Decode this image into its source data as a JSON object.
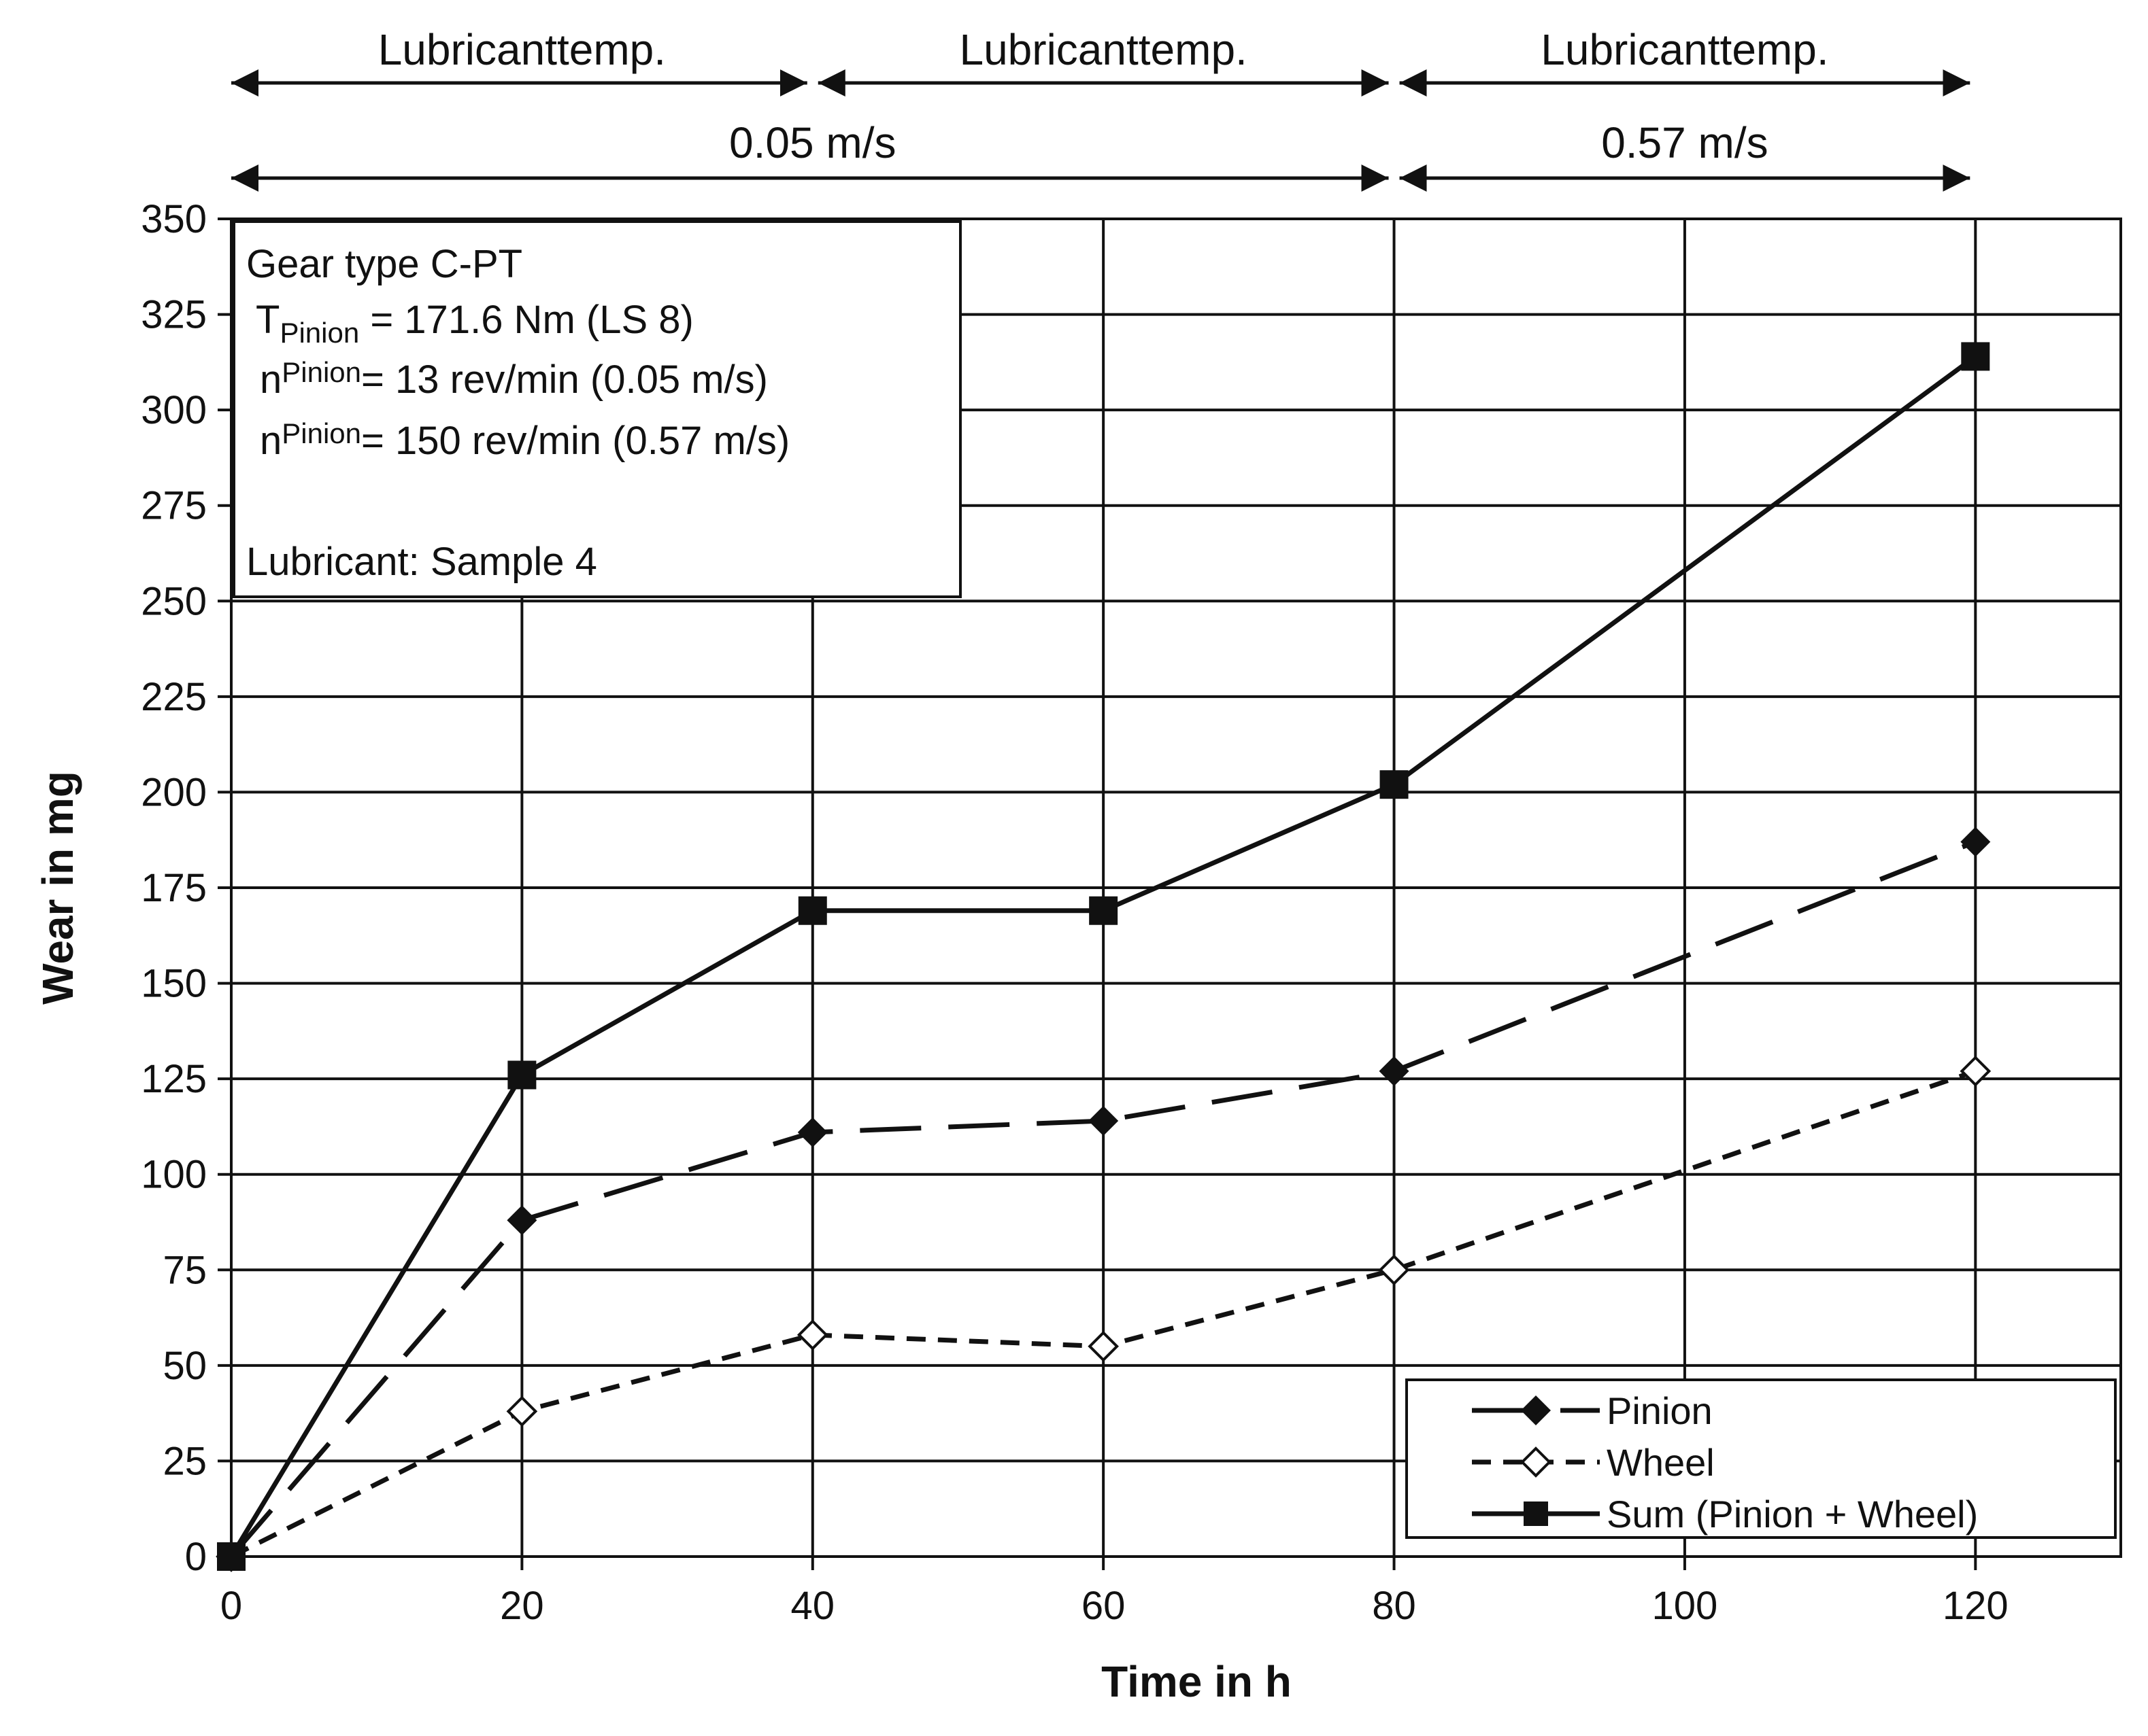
{
  "chart_data": {
    "type": "line",
    "title": "",
    "xlabel": "Time in h",
    "ylabel": "Wear in mg",
    "xlim": [
      0,
      130
    ],
    "ylim": [
      0,
      350
    ],
    "x_ticks": [
      0,
      20,
      40,
      60,
      80,
      100,
      120
    ],
    "y_ticks": [
      0,
      25,
      50,
      75,
      100,
      125,
      150,
      175,
      200,
      225,
      250,
      275,
      300,
      325,
      350
    ],
    "vertical_gridlines": [
      20,
      40,
      60,
      80,
      100,
      120
    ],
    "grid": true,
    "series": [
      {
        "name": "Pinion",
        "style": "long-dash",
        "marker": "filled-diamond",
        "color": "#111111",
        "x": [
          0,
          20,
          40,
          60,
          80,
          120
        ],
        "values": [
          0,
          88,
          111,
          114,
          127,
          187
        ]
      },
      {
        "name": "Wheel",
        "style": "short-dash",
        "marker": "open-diamond",
        "color": "#111111",
        "x": [
          0,
          20,
          40,
          60,
          80,
          120
        ],
        "values": [
          0,
          38,
          58,
          55,
          75,
          127
        ]
      },
      {
        "name": "Sum (Pinion + Wheel)",
        "style": "solid",
        "marker": "filled-square",
        "color": "#111111",
        "x": [
          0,
          20,
          40,
          60,
          80,
          120
        ],
        "values": [
          0,
          126,
          169,
          169,
          202,
          314
        ]
      }
    ],
    "legend_position": "bottom-right",
    "top_annotations": {
      "temperature_label": "Lubricanttemp.",
      "temperature_spans": [
        [
          0,
          40
        ],
        [
          40,
          80
        ],
        [
          80,
          120
        ]
      ],
      "speed_spans": [
        {
          "label": "0.05 m/s",
          "from": 0,
          "to": 80
        },
        {
          "label": "0.57 m/s",
          "from": 80,
          "to": 120
        }
      ]
    },
    "info_box": {
      "line1": "Gear type  C-PT",
      "torque_symbol": "T",
      "torque_sub": "Pinion",
      "torque_value": " = 171.6 Nm (LS 8)",
      "speed1_symbol": "n",
      "speed1_sub": "Pinion",
      "speed1_value": "= 13 rev/min  (0.05 m/s)",
      "speed2_symbol": "n",
      "speed2_sub": "Pinion",
      "speed2_value": "= 150 rev/min  (0.57 m/s)",
      "lubricant": "Lubricant:  Sample  4"
    }
  }
}
